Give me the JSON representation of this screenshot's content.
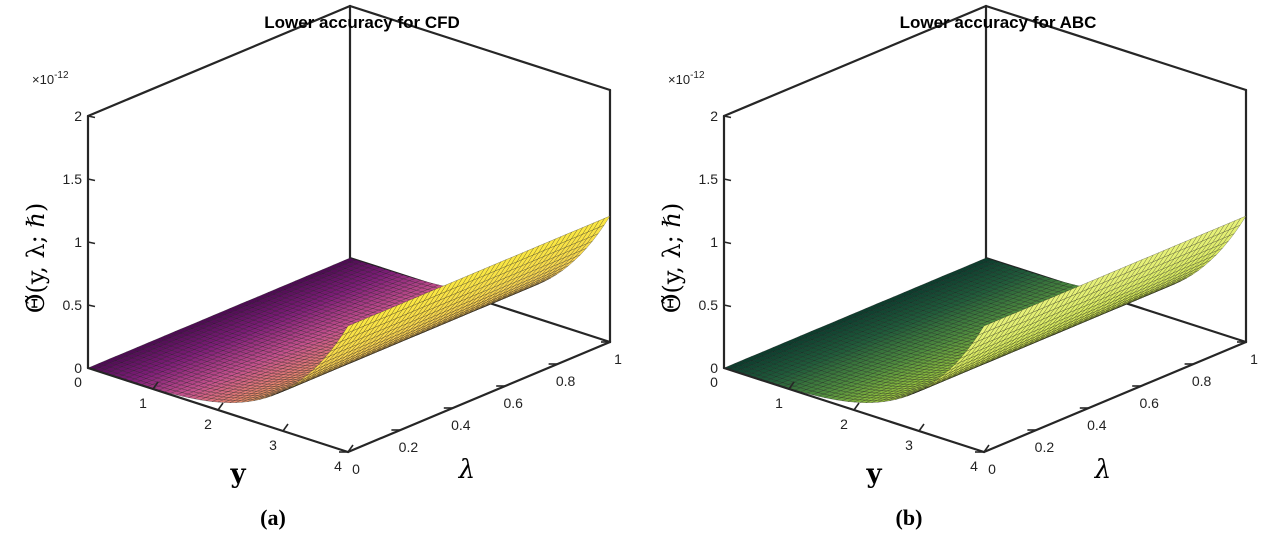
{
  "chart_data": [
    {
      "type": "surface",
      "caption": "(a)",
      "title": "Lower accuracy for CFD",
      "xlabel": "y",
      "ylabel": "λ",
      "zlabel": "Θ̃(y, λ; ℏ)",
      "z_multiplier": "×10",
      "z_exponent": "-12",
      "xlim": [
        0,
        4
      ],
      "ylim": [
        0,
        1
      ],
      "zlim": [
        0,
        2e-12
      ],
      "xticks": [
        "0",
        "1",
        "2",
        "3",
        "4"
      ],
      "yticks": [
        "0",
        "0.2",
        "0.4",
        "0.6",
        "0.8",
        "1"
      ],
      "zticks": [
        "0",
        "0.5",
        "1",
        "1.5",
        "2"
      ],
      "surface": {
        "x_range": [
          0,
          4
        ],
        "y_range": [
          0,
          1
        ],
        "z_at_y0": 0,
        "z_at_y4": 1e-12,
        "shape": "z grows with y to the 4th power, constant in λ"
      },
      "colormap": [
        "#4a0a50",
        "#7e1d78",
        "#c2508c",
        "#e8876e",
        "#f2c25a",
        "#fae842"
      ]
    },
    {
      "type": "surface",
      "caption": "(b)",
      "title": "Lower accuracy for ABC",
      "xlabel": "y",
      "ylabel": "λ",
      "zlabel": "Θ̃(y, λ; ℏ)",
      "z_multiplier": "×10",
      "z_exponent": "-12",
      "xlim": [
        0,
        4
      ],
      "ylim": [
        0,
        1
      ],
      "zlim": [
        0,
        2e-12
      ],
      "xticks": [
        "0",
        "1",
        "2",
        "3",
        "4"
      ],
      "yticks": [
        "0",
        "0.2",
        "0.4",
        "0.6",
        "0.8",
        "1"
      ],
      "zticks": [
        "0",
        "0.5",
        "1",
        "1.5",
        "2"
      ],
      "surface": {
        "x_range": [
          0,
          4
        ],
        "y_range": [
          0,
          1
        ],
        "z_at_y0": 0,
        "z_at_y4": 1e-12,
        "shape": "z grows with y to the 4th power, constant in λ"
      },
      "colormap": [
        "#0b3a2c",
        "#1f5a3a",
        "#4d8a3e",
        "#8fbf3e",
        "#c8e04a",
        "#e8f27a"
      ]
    }
  ]
}
